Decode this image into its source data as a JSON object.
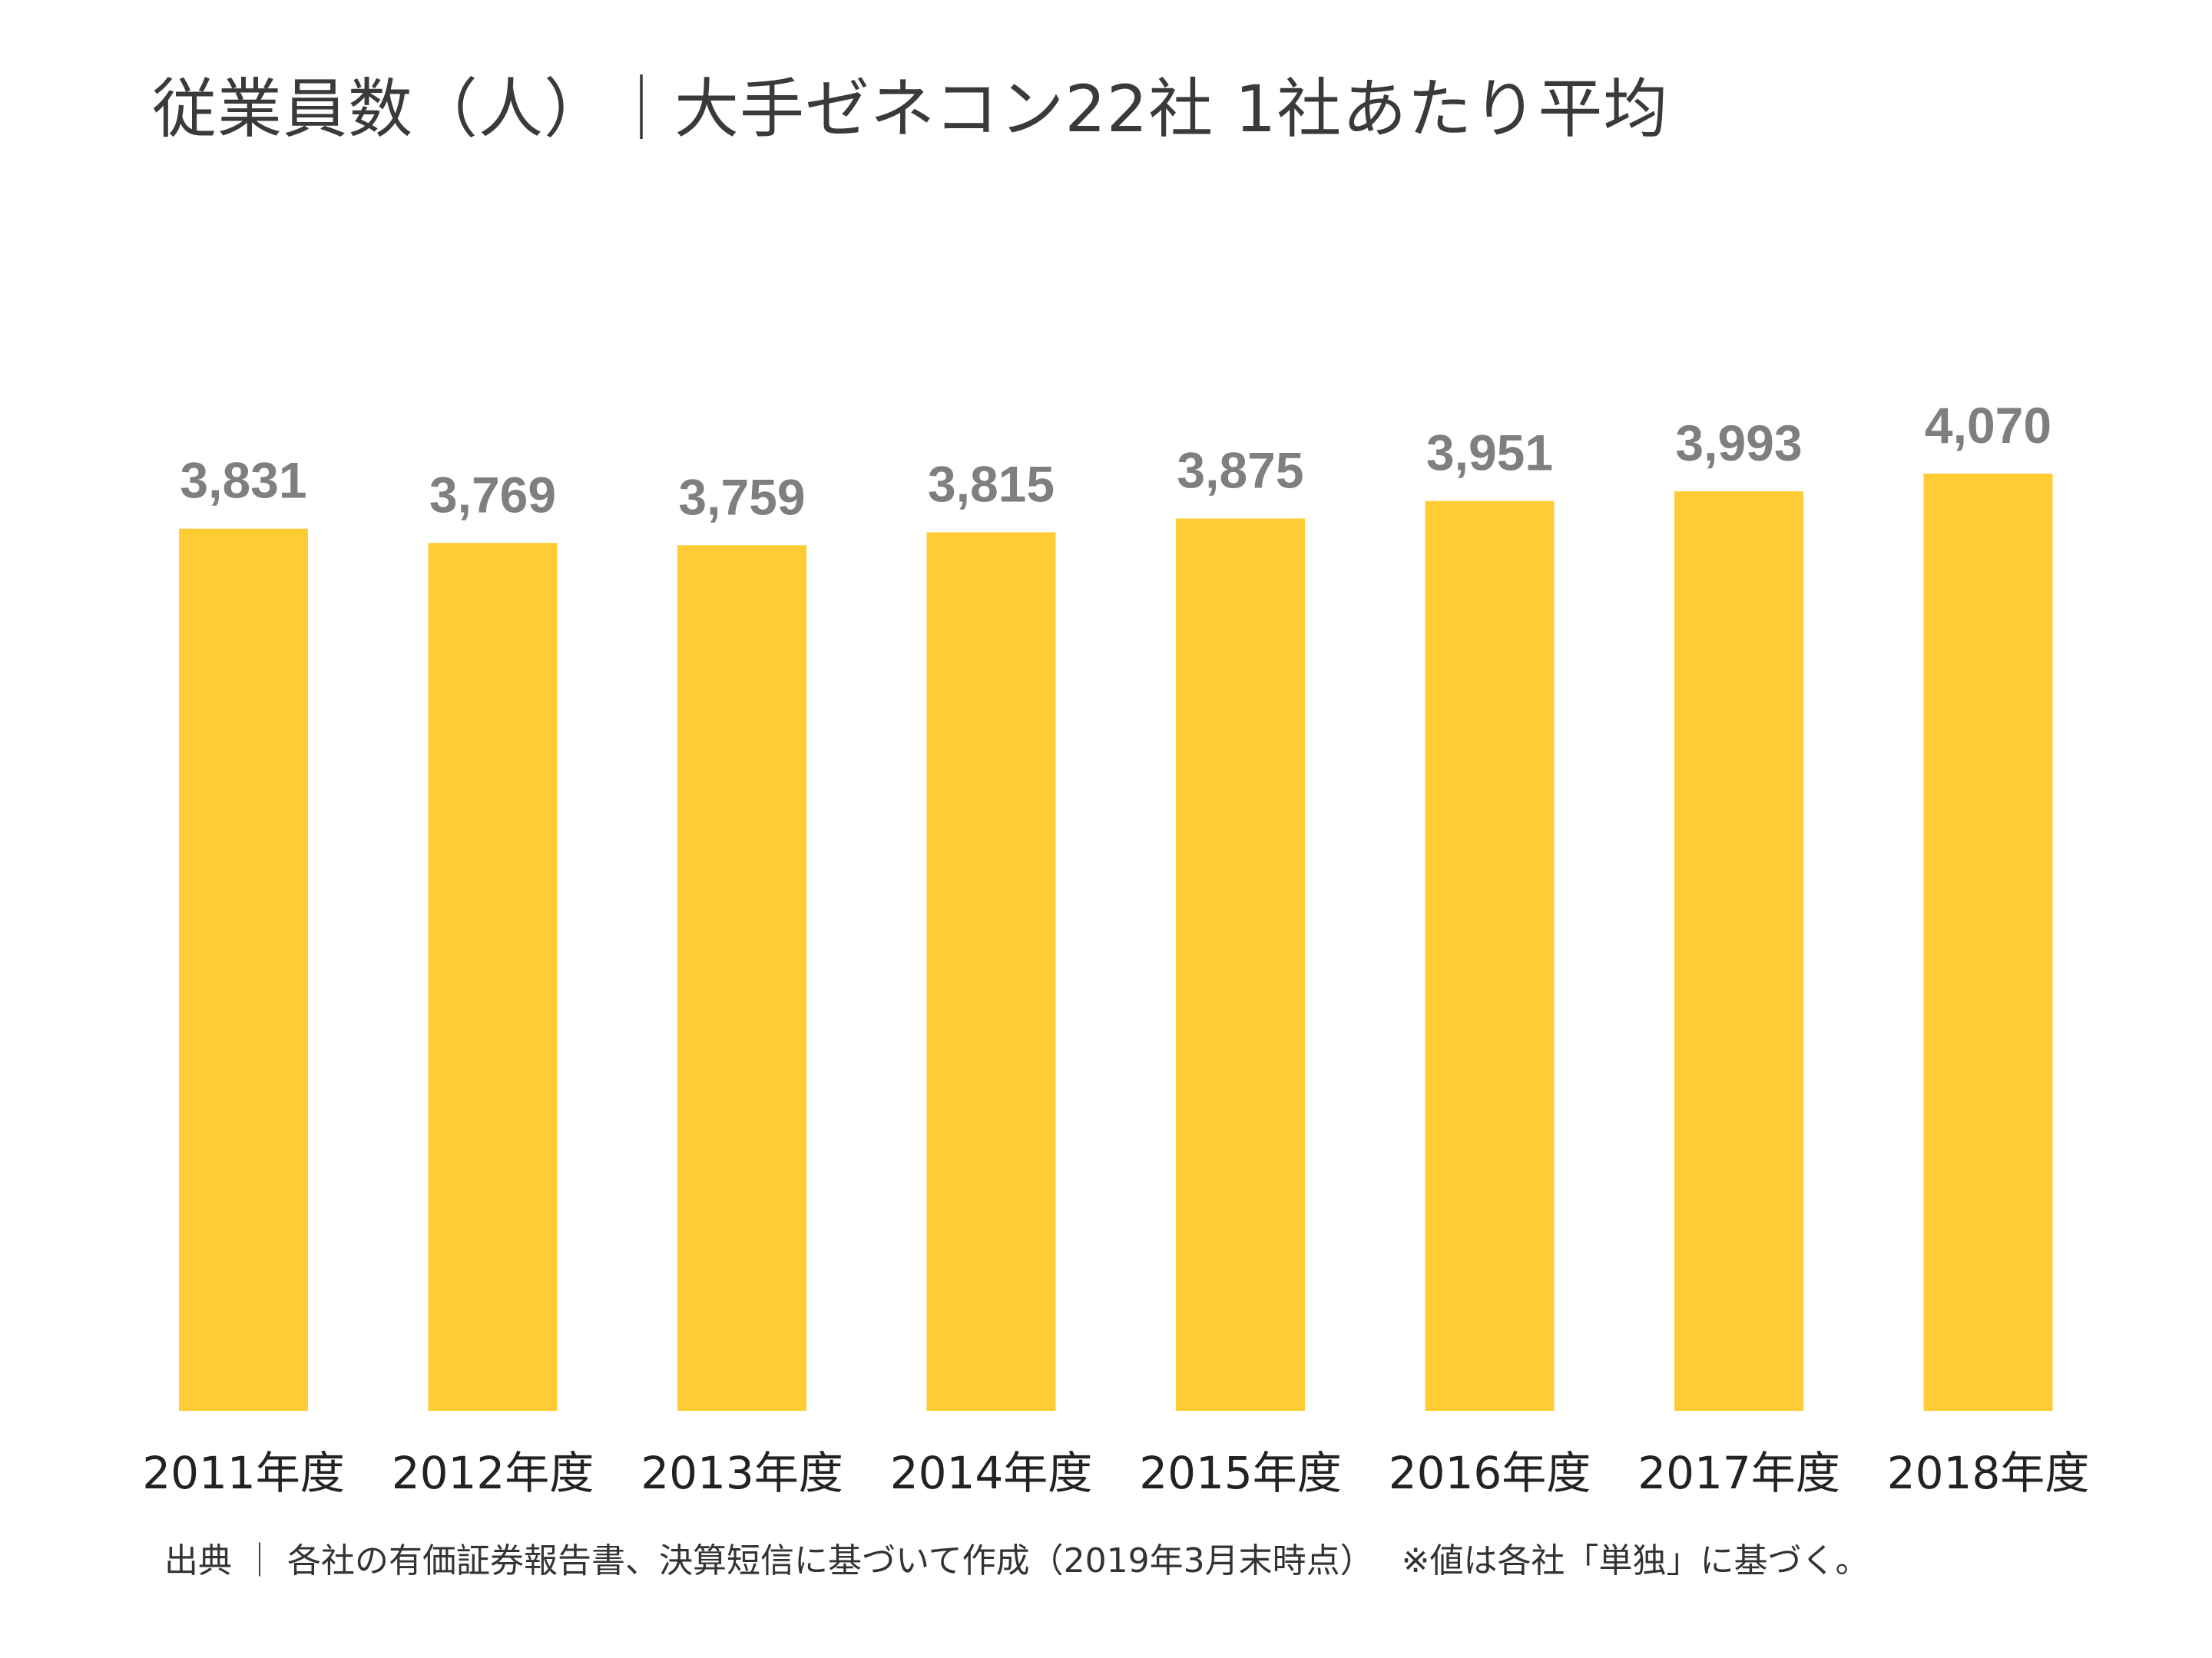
{
  "chart_data": {
    "type": "bar",
    "title": "従業員数（人）｜大手ゼネコン22社 1社あたり平均",
    "categories": [
      "2011年度",
      "2012年度",
      "2013年度",
      "2014年度",
      "2015年度",
      "2016年度",
      "2017年度",
      "2018年度"
    ],
    "values": [
      3831,
      3769,
      3759,
      3815,
      3875,
      3951,
      3993,
      4070
    ],
    "value_labels": [
      "3,831",
      "3,769",
      "3,759",
      "3,815",
      "3,875",
      "3,951",
      "3,993",
      "4,070"
    ],
    "xlabel": "",
    "ylabel": "",
    "ylim": [
      0,
      4500
    ],
    "grid": false,
    "legend": "none",
    "bar_color": "#FFCC33",
    "label_color": "#7F7F7F"
  },
  "footer": {
    "source": "出典 ｜ 各社の有価証券報告書、決算短信に基づいて作成（2019年3月末時点）　 ※値は各社「単独」に基づく。"
  }
}
